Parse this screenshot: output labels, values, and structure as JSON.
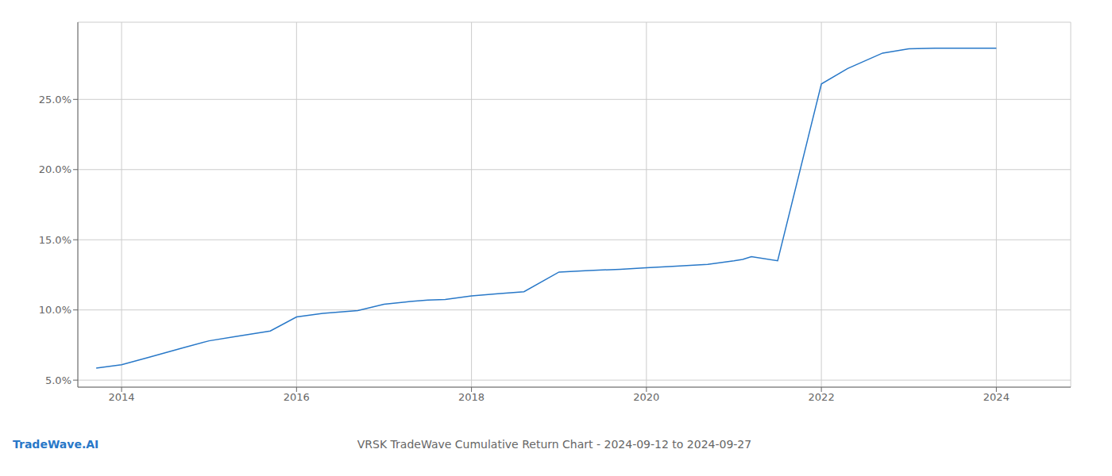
{
  "chart_data": {
    "type": "line",
    "title": "VRSK TradeWave Cumulative Return Chart - 2024-09-12 to 2024-09-27",
    "annotations": [
      "TradeWave.AI"
    ],
    "x": [
      2013.71,
      2014.0,
      2014.3,
      2014.7,
      2015.0,
      2015.3,
      2015.7,
      2016.0,
      2016.3,
      2016.7,
      2017.0,
      2017.3,
      2017.5,
      2017.7,
      2018.0,
      2018.3,
      2018.6,
      2019.0,
      2019.3,
      2019.7,
      2020.0,
      2020.3,
      2020.7,
      2021.0,
      2021.1,
      2021.2,
      2021.5,
      2022.0,
      2022.3,
      2022.7,
      2023.0,
      2023.3,
      2023.7,
      2024.0
    ],
    "values": [
      5.85,
      6.1,
      6.6,
      7.3,
      7.8,
      8.1,
      8.5,
      9.5,
      9.75,
      9.95,
      10.4,
      10.6,
      10.7,
      10.75,
      11.0,
      11.15,
      11.3,
      12.7,
      12.8,
      12.9,
      13.0,
      13.1,
      13.25,
      13.5,
      13.6,
      13.8,
      13.5,
      26.1,
      27.2,
      28.3,
      28.6,
      28.65,
      28.65,
      28.65
    ],
    "color": "#2878c8",
    "xlim": [
      2013.5,
      2024.85
    ],
    "ylim": [
      4.5,
      30.5
    ],
    "xticks": [
      2014,
      2016,
      2018,
      2020,
      2022,
      2024
    ],
    "yticks": [
      {
        "value": 5.0,
        "label": "5.0%"
      },
      {
        "value": 10.0,
        "label": "10.0%"
      },
      {
        "value": 15.0,
        "label": "15.0%"
      },
      {
        "value": 20.0,
        "label": "20.0%"
      },
      {
        "value": 25.0,
        "label": "25.0%"
      }
    ],
    "grid": true
  }
}
